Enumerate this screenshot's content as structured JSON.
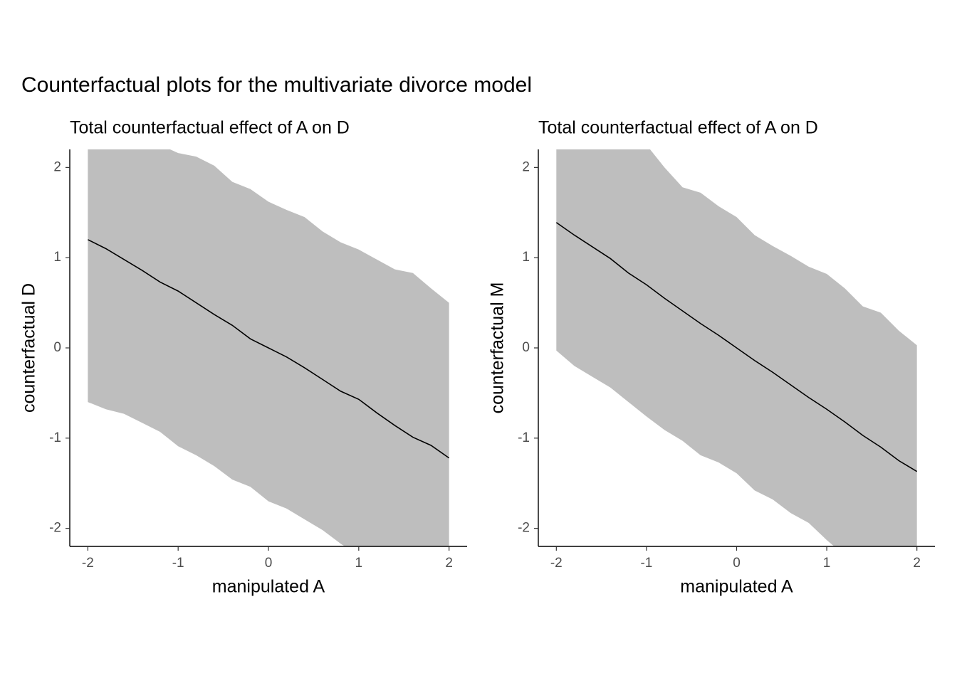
{
  "title": "Counterfactual plots for the multivariate divorce model",
  "chart_data": [
    {
      "type": "line",
      "title": "Total counterfactual effect of A on D",
      "xlabel": "manipulated A",
      "ylabel": "counterfactual D",
      "xlim": [
        -2.2,
        2.2
      ],
      "ylim": [
        -2.2,
        2.2
      ],
      "xticks": [
        -2,
        -1,
        0,
        1,
        2
      ],
      "yticks": [
        -2,
        -1,
        0,
        1,
        2
      ],
      "x": [
        -2,
        -1.8,
        -1.6,
        -1.4,
        -1.2,
        -1,
        -0.8,
        -0.6,
        -0.4,
        -0.2,
        0,
        0.2,
        0.4,
        0.6,
        0.8,
        1,
        1.2,
        1.4,
        1.6,
        1.8,
        2
      ],
      "series": [
        {
          "color": "#000000",
          "band_color": "#bebebe",
          "values": [
            1.2,
            1.1,
            0.98,
            0.86,
            0.73,
            0.63,
            0.5,
            0.37,
            0.25,
            0.1,
            0.0,
            -0.1,
            -0.22,
            -0.35,
            -0.48,
            -0.57,
            -0.72,
            -0.86,
            -0.99,
            -1.08,
            -1.22
          ],
          "upper": [
            2.6,
            2.5,
            2.45,
            2.35,
            2.25,
            2.16,
            2.12,
            2.02,
            1.84,
            1.76,
            1.62,
            1.53,
            1.45,
            1.29,
            1.17,
            1.09,
            0.98,
            0.87,
            0.83,
            0.66,
            0.5
          ],
          "lower": [
            -0.6,
            -0.68,
            -0.73,
            -0.83,
            -0.93,
            -1.09,
            -1.19,
            -1.31,
            -1.46,
            -1.54,
            -1.7,
            -1.78,
            -1.9,
            -2.02,
            -2.17,
            -2.3,
            -2.4,
            -2.5,
            -2.6,
            -2.7,
            -2.8
          ]
        }
      ]
    },
    {
      "type": "line",
      "title": "Total counterfactual effect of A on D",
      "xlabel": "manipulated A",
      "ylabel": "counterfactual M",
      "xlim": [
        -2.2,
        2.2
      ],
      "ylim": [
        -2.2,
        2.2
      ],
      "xticks": [
        -2,
        -1,
        0,
        1,
        2
      ],
      "yticks": [
        -2,
        -1,
        0,
        1,
        2
      ],
      "x": [
        -2,
        -1.8,
        -1.6,
        -1.4,
        -1.2,
        -1,
        -0.8,
        -0.6,
        -0.4,
        -0.2,
        0,
        0.2,
        0.4,
        0.6,
        0.8,
        1,
        1.2,
        1.4,
        1.6,
        1.8,
        2
      ],
      "series": [
        {
          "color": "#000000",
          "band_color": "#bebebe",
          "values": [
            1.39,
            1.25,
            1.12,
            0.99,
            0.83,
            0.7,
            0.55,
            0.41,
            0.27,
            0.14,
            0.0,
            -0.14,
            -0.27,
            -0.41,
            -0.55,
            -0.68,
            -0.82,
            -0.97,
            -1.1,
            -1.25,
            -1.37
          ],
          "upper": [
            2.7,
            2.6,
            2.5,
            2.4,
            2.3,
            2.25,
            2.0,
            1.78,
            1.72,
            1.57,
            1.45,
            1.25,
            1.13,
            1.02,
            0.9,
            0.82,
            0.66,
            0.46,
            0.39,
            0.19,
            0.03
          ],
          "lower": [
            -0.03,
            -0.2,
            -0.32,
            -0.44,
            -0.6,
            -0.76,
            -0.91,
            -1.03,
            -1.19,
            -1.27,
            -1.39,
            -1.58,
            -1.68,
            -1.83,
            -1.94,
            -2.13,
            -2.3,
            -2.4,
            -2.5,
            -2.6,
            -2.7
          ]
        }
      ]
    }
  ]
}
